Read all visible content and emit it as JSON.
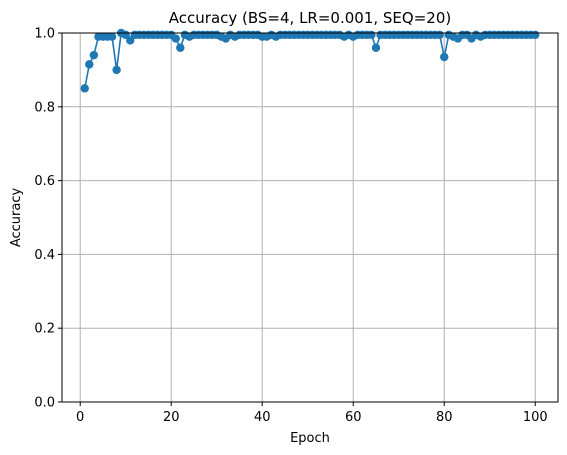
{
  "chart_data": {
    "type": "line",
    "title": "Accuracy (BS=4, LR=0.001, SEQ=20)",
    "xlabel": "Epoch",
    "ylabel": "Accuracy",
    "xlim": [
      -4,
      105
    ],
    "ylim": [
      0.0,
      1.0
    ],
    "xticks": [
      0,
      20,
      40,
      60,
      80,
      100
    ],
    "yticks": [
      0.0,
      0.2,
      0.4,
      0.6,
      0.8,
      1.0
    ],
    "xtick_labels": [
      "0",
      "20",
      "40",
      "60",
      "80",
      "100"
    ],
    "ytick_labels": [
      "0.0",
      "0.2",
      "0.4",
      "0.6",
      "0.8",
      "1.0"
    ],
    "grid": true,
    "line_color": "#1f77b4",
    "marker": "circle",
    "series": [
      {
        "x": [
          1,
          2,
          3,
          4,
          5,
          6,
          7,
          8,
          9,
          10,
          11,
          12,
          13,
          14,
          15,
          16,
          17,
          18,
          19,
          20,
          21,
          22,
          23,
          24,
          25,
          26,
          27,
          28,
          29,
          30,
          31,
          32,
          33,
          34,
          35,
          36,
          37,
          38,
          39,
          40,
          41,
          42,
          43,
          44,
          45,
          46,
          47,
          48,
          49,
          50,
          51,
          52,
          53,
          54,
          55,
          56,
          57,
          58,
          59,
          60,
          61,
          62,
          63,
          64,
          65,
          66,
          67,
          68,
          69,
          70,
          71,
          72,
          73,
          74,
          75,
          76,
          77,
          78,
          79,
          80,
          81,
          82,
          83,
          84,
          85,
          86,
          87,
          88,
          89,
          90,
          91,
          92,
          93,
          94,
          95,
          96,
          97,
          98,
          99,
          100
        ],
        "values": [
          0.85,
          0.915,
          0.94,
          0.99,
          0.99,
          0.99,
          0.99,
          0.9,
          1.0,
          0.995,
          0.98,
          0.995,
          0.995,
          0.995,
          0.995,
          0.995,
          0.995,
          0.995,
          0.995,
          0.995,
          0.985,
          0.96,
          0.995,
          0.99,
          0.995,
          0.995,
          0.995,
          0.995,
          0.995,
          0.995,
          0.99,
          0.985,
          0.995,
          0.99,
          0.995,
          0.995,
          0.995,
          0.995,
          0.995,
          0.99,
          0.99,
          0.995,
          0.99,
          0.995,
          0.995,
          0.995,
          0.995,
          0.995,
          0.995,
          0.995,
          0.995,
          0.995,
          0.995,
          0.995,
          0.995,
          0.995,
          0.995,
          0.99,
          0.995,
          0.99,
          0.995,
          0.995,
          0.995,
          0.995,
          0.96,
          0.995,
          0.995,
          0.995,
          0.995,
          0.995,
          0.995,
          0.995,
          0.995,
          0.995,
          0.995,
          0.995,
          0.995,
          0.995,
          0.995,
          0.935,
          0.995,
          0.99,
          0.985,
          0.995,
          0.995,
          0.985,
          0.995,
          0.99,
          0.995,
          0.995,
          0.995,
          0.995,
          0.995,
          0.995,
          0.995,
          0.995,
          0.995,
          0.995,
          0.995,
          0.995
        ]
      }
    ]
  }
}
